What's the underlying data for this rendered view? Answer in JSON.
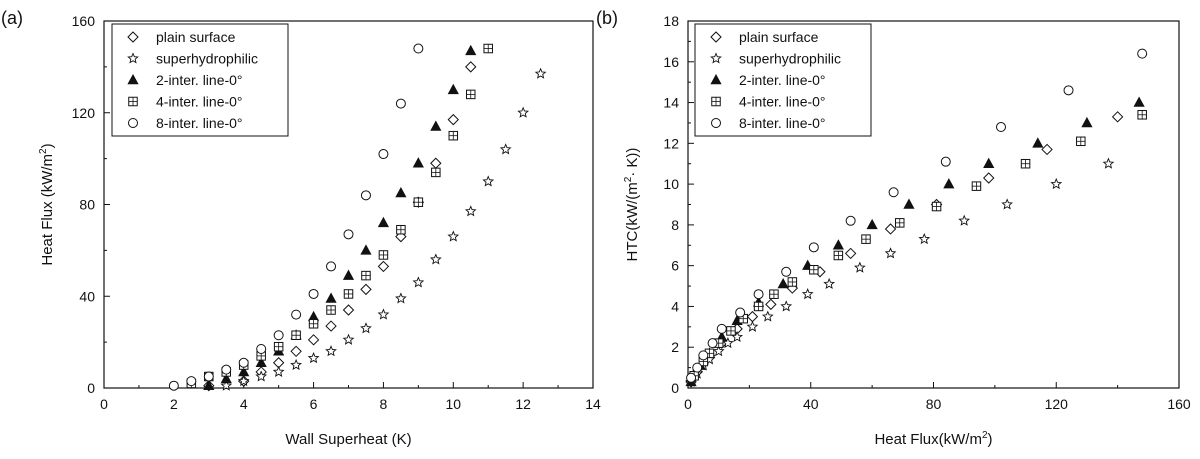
{
  "chart_data": [
    {
      "type": "scatter",
      "panel_label": "(a)",
      "xlabel": "Wall Superheat (K)",
      "ylabel_main": "Heat Flux (kW/m",
      "ylabel_sup": "2",
      "ylabel_tail": ")",
      "xlim": [
        0,
        14
      ],
      "ylim": [
        0,
        160
      ],
      "xticks": [
        "0",
        "2",
        "4",
        "6",
        "8",
        "10",
        "12",
        "14"
      ],
      "yticks": [
        "0",
        "40",
        "80",
        "120",
        "160"
      ],
      "legend_position": "top-left",
      "series": [
        {
          "name": "plain surface",
          "marker": "diamond",
          "x": [
            3,
            4,
            4.5,
            5,
            5.5,
            6,
            6.5,
            7,
            7.5,
            8,
            8.5,
            9,
            9.5,
            10,
            10.5
          ],
          "y": [
            1,
            3,
            7,
            11,
            16,
            21,
            27,
            34,
            43,
            53,
            66,
            81,
            98,
            117,
            140
          ]
        },
        {
          "name": "superhydrophilic",
          "marker": "star",
          "x": [
            3.5,
            4,
            4.5,
            5,
            5.5,
            6,
            6.5,
            7,
            7.5,
            8,
            8.5,
            9,
            9.5,
            10,
            10.5,
            11,
            11.5,
            12,
            12.5
          ],
          "y": [
            1,
            3,
            5,
            7,
            10,
            13,
            16,
            21,
            26,
            32,
            39,
            46,
            56,
            66,
            77,
            90,
            104,
            120,
            137
          ]
        },
        {
          "name": "2-inter. line-0°",
          "marker": "triangle",
          "x": [
            3,
            3.5,
            4,
            4.5,
            5,
            5.5,
            6,
            6.5,
            7,
            7.5,
            8,
            8.5,
            9,
            9.5,
            10,
            10.5
          ],
          "y": [
            1,
            4,
            7,
            11,
            16,
            23,
            31,
            39,
            49,
            60,
            72,
            85,
            98,
            114,
            130,
            147
          ]
        },
        {
          "name": "4-inter. line-0°",
          "marker": "boxplus",
          "x": [
            2.5,
            3,
            3.5,
            4,
            4.5,
            5,
            5.5,
            6,
            6.5,
            7,
            7.5,
            8,
            8.5,
            9,
            9.5,
            10,
            10.5,
            11
          ],
          "y": [
            2,
            5,
            7,
            10,
            14,
            18,
            23,
            28,
            34,
            41,
            49,
            58,
            69,
            81,
            94,
            110,
            128,
            148
          ]
        },
        {
          "name": "8-inter. line-0°",
          "marker": "circle",
          "x": [
            2,
            2.5,
            3,
            3.5,
            4,
            4.5,
            5,
            5.5,
            6,
            6.5,
            7,
            7.5,
            8,
            8.5,
            9
          ],
          "y": [
            1,
            3,
            5,
            8,
            11,
            17,
            23,
            32,
            41,
            53,
            67,
            84,
            102,
            124,
            148
          ]
        }
      ]
    },
    {
      "type": "scatter",
      "panel_label": "(b)",
      "xlabel_main": "Heat Flux(kW/m",
      "xlabel_sup": "2",
      "xlabel_tail": ")",
      "ylabel_main": "HTC(kW/(m",
      "ylabel_sup": "2",
      "ylabel_tail": "· K))",
      "xlim": [
        0,
        160
      ],
      "ylim": [
        0,
        18
      ],
      "xticks": [
        "0",
        "40",
        "80",
        "120",
        "160"
      ],
      "yticks": [
        "0",
        "2",
        "4",
        "6",
        "8",
        "10",
        "12",
        "14",
        "16",
        "18"
      ],
      "legend_position": "top-left",
      "series": [
        {
          "name": "plain surface",
          "marker": "diamond",
          "x": [
            1,
            3,
            7,
            11,
            16,
            21,
            27,
            34,
            43,
            53,
            66,
            81,
            98,
            117,
            140
          ],
          "y": [
            0.3,
            0.8,
            1.6,
            2.2,
            2.9,
            3.5,
            4.1,
            4.9,
            5.7,
            6.6,
            7.8,
            9.0,
            10.3,
            11.7,
            13.3
          ]
        },
        {
          "name": "superhydrophilic",
          "marker": "star",
          "x": [
            1,
            3,
            5,
            7,
            10,
            13,
            16,
            21,
            26,
            32,
            39,
            46,
            56,
            66,
            77,
            90,
            104,
            120,
            137
          ],
          "y": [
            0.3,
            0.7,
            1.1,
            1.4,
            1.8,
            2.2,
            2.5,
            3.0,
            3.5,
            4.0,
            4.6,
            5.1,
            5.9,
            6.6,
            7.3,
            8.2,
            9.0,
            10.0,
            11.0
          ]
        },
        {
          "name": "2-inter. line-0°",
          "marker": "triangle",
          "x": [
            1,
            4,
            7,
            11,
            16,
            23,
            31,
            39,
            49,
            60,
            72,
            85,
            98,
            114,
            130,
            147
          ],
          "y": [
            0.3,
            1.1,
            1.7,
            2.5,
            3.3,
            4.2,
            5.1,
            6.0,
            7.0,
            8.0,
            9.0,
            10.0,
            11.0,
            12.0,
            13.0,
            14.0
          ]
        },
        {
          "name": "4-inter. line-0°",
          "marker": "boxplus",
          "x": [
            2,
            5,
            7,
            10,
            14,
            18,
            23,
            28,
            34,
            41,
            49,
            58,
            69,
            81,
            94,
            110,
            128,
            148
          ],
          "y": [
            0.6,
            1.3,
            1.7,
            2.2,
            2.8,
            3.4,
            4.0,
            4.6,
            5.2,
            5.8,
            6.5,
            7.3,
            8.1,
            8.9,
            9.9,
            11.0,
            12.1,
            13.4
          ]
        },
        {
          "name": "8-inter. line-0°",
          "marker": "circle",
          "x": [
            1,
            3,
            5,
            8,
            11,
            17,
            23,
            32,
            41,
            53,
            67,
            84,
            102,
            124,
            148
          ],
          "y": [
            0.5,
            1.0,
            1.6,
            2.2,
            2.9,
            3.7,
            4.6,
            5.7,
            6.9,
            8.2,
            9.6,
            11.1,
            12.8,
            14.6,
            16.4
          ]
        }
      ]
    }
  ]
}
